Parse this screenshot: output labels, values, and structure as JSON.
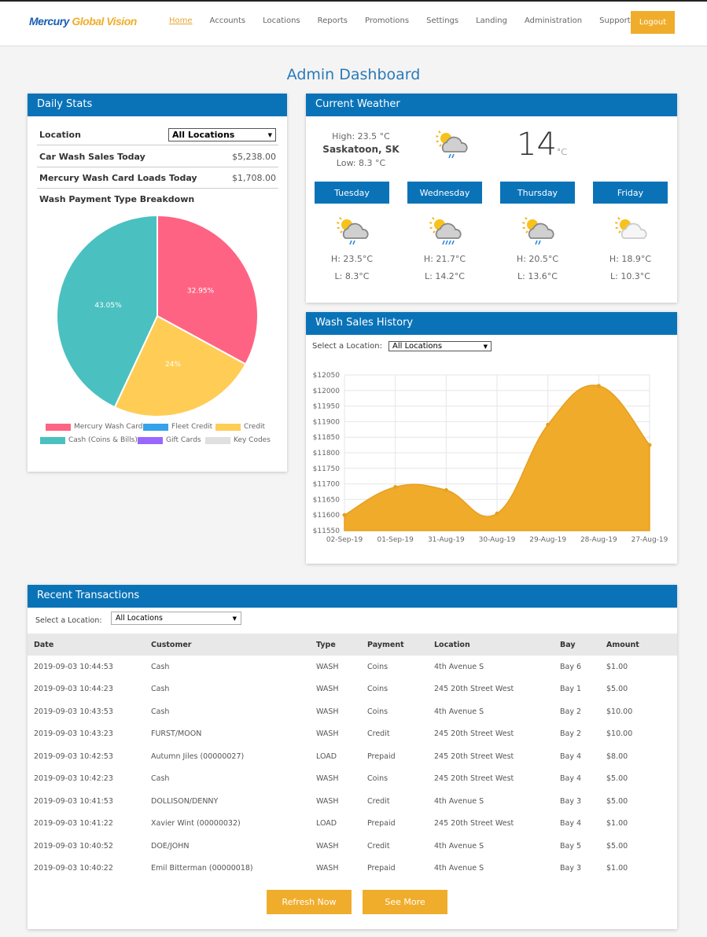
{
  "brand": {
    "part1": "Mercury",
    "part2": "Global Vision"
  },
  "nav": {
    "items": [
      "Home",
      "Accounts",
      "Locations",
      "Reports",
      "Promotions",
      "Settings",
      "Landing",
      "Administration",
      "Support"
    ],
    "active": "Home",
    "logout": "Logout"
  },
  "page_title": "Admin Dashboard",
  "daily": {
    "title": "Daily Stats",
    "location_label": "Location",
    "location_value": "All Locations",
    "car_wash_label": "Car Wash Sales Today",
    "car_wash_value": "$5,238.00",
    "card_label": "Mercury Wash Card Loads Today",
    "card_value": "$1,708.00",
    "breakdown_label": "Wash Payment Type Breakdown"
  },
  "chart_data": [
    {
      "type": "pie",
      "slices": [
        {
          "name": "Mercury Wash Card",
          "value": 32.95,
          "label": "32.95%",
          "color": "#ff6384"
        },
        {
          "name": "Credit",
          "value": 24,
          "label": "24%",
          "color": "#ffcd56"
        },
        {
          "name": "Cash (Coins & Bills)",
          "value": 43.05,
          "label": "43.05%",
          "color": "#4bc0c0"
        }
      ],
      "legend": [
        {
          "name": "Mercury Wash Card",
          "color": "#ff6384"
        },
        {
          "name": "Fleet Credit",
          "color": "#36a2eb"
        },
        {
          "name": "Credit",
          "color": "#ffcd56"
        },
        {
          "name": "Cash (Coins & Bills)",
          "color": "#4bc0c0"
        },
        {
          "name": "Gift Cards",
          "color": "#9966ff"
        },
        {
          "name": "Key Codes",
          "color": "#e0e0e0"
        }
      ],
      "legend_position": "bottom"
    },
    {
      "type": "area",
      "x": [
        "02-Sep-19",
        "01-Sep-19",
        "31-Aug-19",
        "30-Aug-19",
        "29-Aug-19",
        "28-Aug-19",
        "27-Aug-19"
      ],
      "values": [
        11600,
        11690,
        11680,
        11605,
        11890,
        12015,
        11825
      ],
      "ylim": [
        11550,
        12050
      ],
      "yticks": [
        "$12050",
        "$12000",
        "$11950",
        "$11900",
        "$11850",
        "$11800",
        "$11750",
        "$11700",
        "$11650",
        "$11600",
        "$11550"
      ],
      "color": "#f0ab2a",
      "grid": true
    }
  ],
  "weather": {
    "title": "Current Weather",
    "high": "High: 23.5 °C",
    "city": "Saskatoon, SK",
    "low": "Low: 8.3 °C",
    "temp": "14",
    "unit": "°C",
    "icon": "partly-cloudy-rain-icon",
    "days": [
      {
        "name": "Tuesday",
        "h": "H: 23.5°C",
        "l": "L: 8.3°C",
        "icon": "light-rain"
      },
      {
        "name": "Wednesday",
        "h": "H: 21.7°C",
        "l": "L: 14.2°C",
        "icon": "rain"
      },
      {
        "name": "Thursday",
        "h": "H: 20.5°C",
        "l": "L: 13.6°C",
        "icon": "light-rain"
      },
      {
        "name": "Friday",
        "h": "H: 18.9°C",
        "l": "L: 10.3°C",
        "icon": "partly-cloudy"
      }
    ]
  },
  "sales": {
    "title": "Wash Sales History",
    "select_label": "Select a Location:",
    "select_value": "All Locations"
  },
  "recent": {
    "title": "Recent Transactions",
    "select_label": "Select a Location:",
    "select_value": "All Locations",
    "columns": [
      "Date",
      "Customer",
      "Type",
      "Payment",
      "Location",
      "Bay",
      "Amount"
    ],
    "rows": [
      [
        "2019-09-03 10:44:53",
        "Cash",
        "WASH",
        "Coins",
        "4th Avenue S",
        "Bay 6",
        "$1.00"
      ],
      [
        "2019-09-03 10:44:23",
        "Cash",
        "WASH",
        "Coins",
        "245 20th Street West",
        "Bay 1",
        "$5.00"
      ],
      [
        "2019-09-03 10:43:53",
        "Cash",
        "WASH",
        "Coins",
        "4th Avenue S",
        "Bay 2",
        "$10.00"
      ],
      [
        "2019-09-03 10:43:23",
        "FURST/MOON",
        "WASH",
        "Credit",
        "245 20th Street West",
        "Bay 2",
        "$10.00"
      ],
      [
        "2019-09-03 10:42:53",
        "Autumn Jiles (00000027)",
        "LOAD",
        "Prepaid",
        "245 20th Street West",
        "Bay 4",
        "$8.00"
      ],
      [
        "2019-09-03 10:42:23",
        "Cash",
        "WASH",
        "Coins",
        "245 20th Street West",
        "Bay 4",
        "$5.00"
      ],
      [
        "2019-09-03 10:41:53",
        "DOLLISON/DENNY",
        "WASH",
        "Credit",
        "4th Avenue S",
        "Bay 3",
        "$5.00"
      ],
      [
        "2019-09-03 10:41:22",
        "Xavier Wint (00000032)",
        "LOAD",
        "Prepaid",
        "245 20th Street West",
        "Bay 4",
        "$1.00"
      ],
      [
        "2019-09-03 10:40:52",
        "DOE/JOHN",
        "WASH",
        "Credit",
        "4th Avenue S",
        "Bay 5",
        "$5.00"
      ],
      [
        "2019-09-03 10:40:22",
        "Emil Bitterman (00000018)",
        "WASH",
        "Prepaid",
        "4th Avenue S",
        "Bay 3",
        "$1.00"
      ]
    ],
    "refresh": "Refresh Now",
    "see_more": "See More"
  }
}
